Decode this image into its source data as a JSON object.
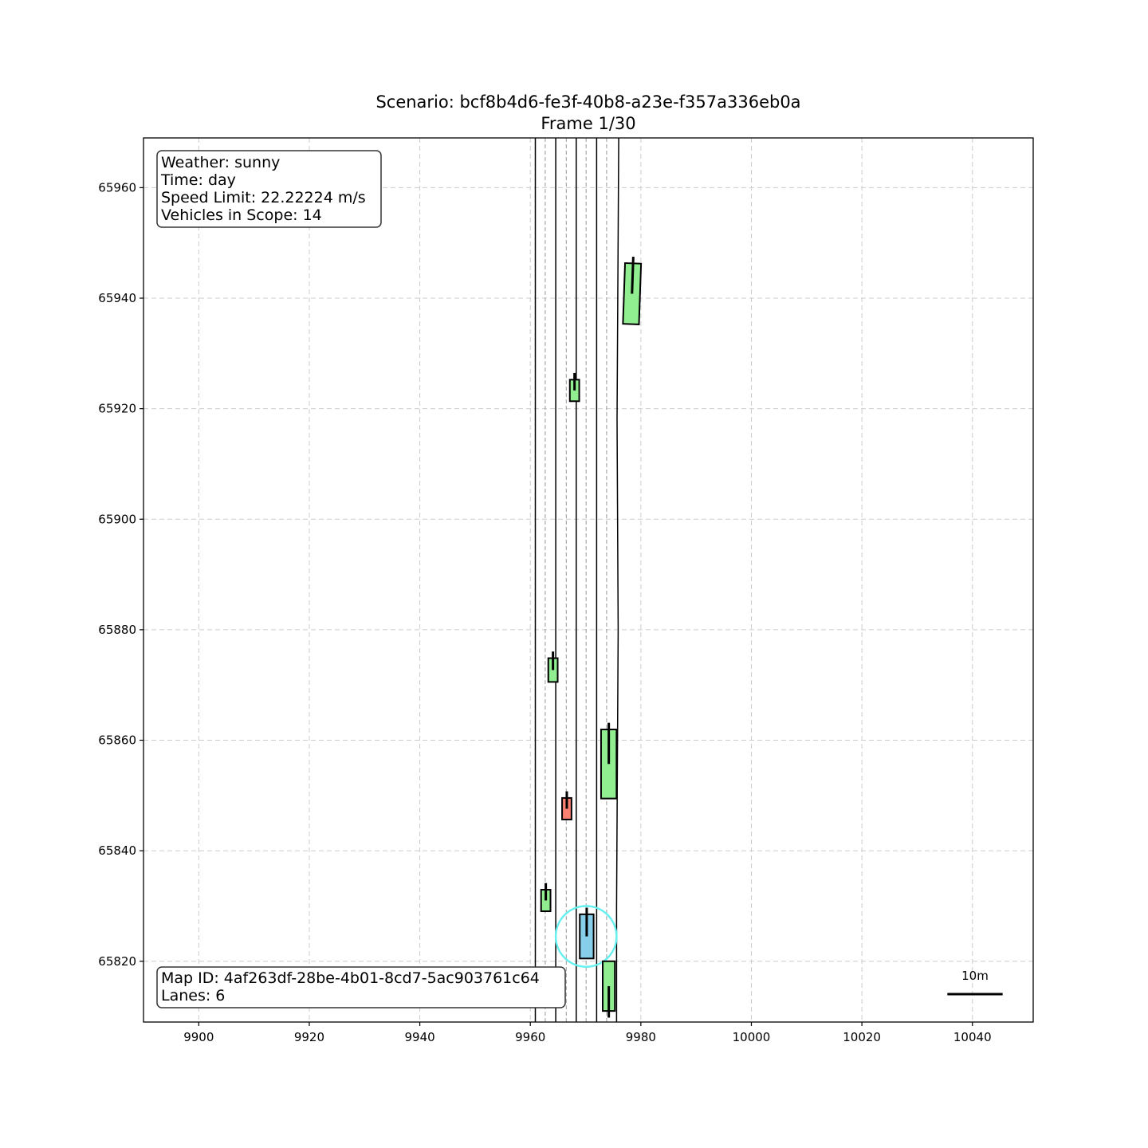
{
  "header": {
    "title_line1": "Scenario: bcf8b4d6-fe3f-40b8-a23e-f357a336eb0a",
    "title_line2": "Frame 1/30"
  },
  "info_box": {
    "weather": "Weather: sunny",
    "time": "Time: day",
    "speed_limit": "Speed Limit: 22.22224 m/s",
    "vehicles": "Vehicles in Scope: 14"
  },
  "map_box": {
    "map_id": "Map ID: 4af263df-28be-4b01-8cd7-5ac903761c64",
    "lanes": "Lanes: 6"
  },
  "scale_bar": {
    "label": "10m",
    "length_m": 10
  },
  "colors": {
    "other_vehicle": "#90ee90",
    "highlight_vehicle": "#fa8072",
    "ego_vehicle": "#87ceeb",
    "ego_ring": "#66f0f0",
    "grid": "#cccccc",
    "lane_boundary": "#000000",
    "lane_center": "#999999"
  },
  "chart_data": {
    "type": "scatter",
    "title": "Scenario: bcf8b4d6-fe3f-40b8-a23e-f357a336eb0a\nFrame 1/30",
    "xlim": [
      9890,
      10051
    ],
    "ylim": [
      65809,
      65969
    ],
    "x_ticks": [
      9900,
      9920,
      9940,
      9960,
      9980,
      10000,
      10020,
      10040
    ],
    "y_ticks": [
      65820,
      65840,
      65860,
      65880,
      65900,
      65920,
      65940,
      65960
    ],
    "grid": true,
    "lane_boundaries": [
      {
        "points": [
          [
            9960.9,
            65809
          ],
          [
            9960.9,
            65969
          ]
        ]
      },
      {
        "points": [
          [
            9964.6,
            65809
          ],
          [
            9964.6,
            65969
          ]
        ]
      },
      {
        "points": [
          [
            9968.3,
            65809
          ],
          [
            9968.3,
            65969
          ]
        ]
      },
      {
        "points": [
          [
            9972.0,
            65809
          ],
          [
            9972.0,
            65969
          ]
        ]
      },
      {
        "points": [
          [
            9975.6,
            65809
          ],
          [
            9975.6,
            65830
          ],
          [
            9975.9,
            65880
          ],
          [
            9975.7,
            65918
          ],
          [
            9976.0,
            65969
          ]
        ]
      }
    ],
    "lane_centers": [
      {
        "points": [
          [
            9962.7,
            65809
          ],
          [
            9962.7,
            65969
          ]
        ]
      },
      {
        "points": [
          [
            9966.5,
            65809
          ],
          [
            9966.5,
            65969
          ]
        ]
      },
      {
        "points": [
          [
            9970.1,
            65809
          ],
          [
            9970.1,
            65969
          ]
        ]
      },
      {
        "points": [
          [
            9973.8,
            65809
          ],
          [
            9973.8,
            65969
          ]
        ]
      }
    ],
    "vehicles": [
      {
        "role": "other",
        "cx": 9978.4,
        "cy": 65940.8,
        "w": 2.9,
        "l": 11.0,
        "angle_deg": 2,
        "dir": 1
      },
      {
        "role": "other",
        "cx": 9968.0,
        "cy": 65923.3,
        "w": 1.7,
        "l": 3.9,
        "angle_deg": 0,
        "dir": 1
      },
      {
        "role": "other",
        "cx": 9964.1,
        "cy": 65872.7,
        "w": 1.7,
        "l": 4.3,
        "angle_deg": 0,
        "dir": 1
      },
      {
        "role": "other",
        "cx": 9974.2,
        "cy": 65855.7,
        "w": 2.8,
        "l": 12.5,
        "angle_deg": 0,
        "dir": 1
      },
      {
        "role": "highlight",
        "cx": 9966.6,
        "cy": 65847.6,
        "w": 1.7,
        "l": 3.9,
        "angle_deg": 0,
        "dir": 1
      },
      {
        "role": "other",
        "cx": 9962.8,
        "cy": 65831.0,
        "w": 1.7,
        "l": 3.9,
        "angle_deg": 0,
        "dir": 1
      },
      {
        "role": "ego",
        "cx": 9970.2,
        "cy": 65824.5,
        "w": 2.5,
        "l": 8.0,
        "angle_deg": 0,
        "dir": 1
      },
      {
        "role": "other",
        "cx": 9974.2,
        "cy": 65815.5,
        "w": 2.2,
        "l": 9.0,
        "angle_deg": 0,
        "dir": -1
      }
    ],
    "ego_highlight": {
      "cx": 9970.1,
      "cy": 65824.5,
      "r": 5.5
    }
  }
}
